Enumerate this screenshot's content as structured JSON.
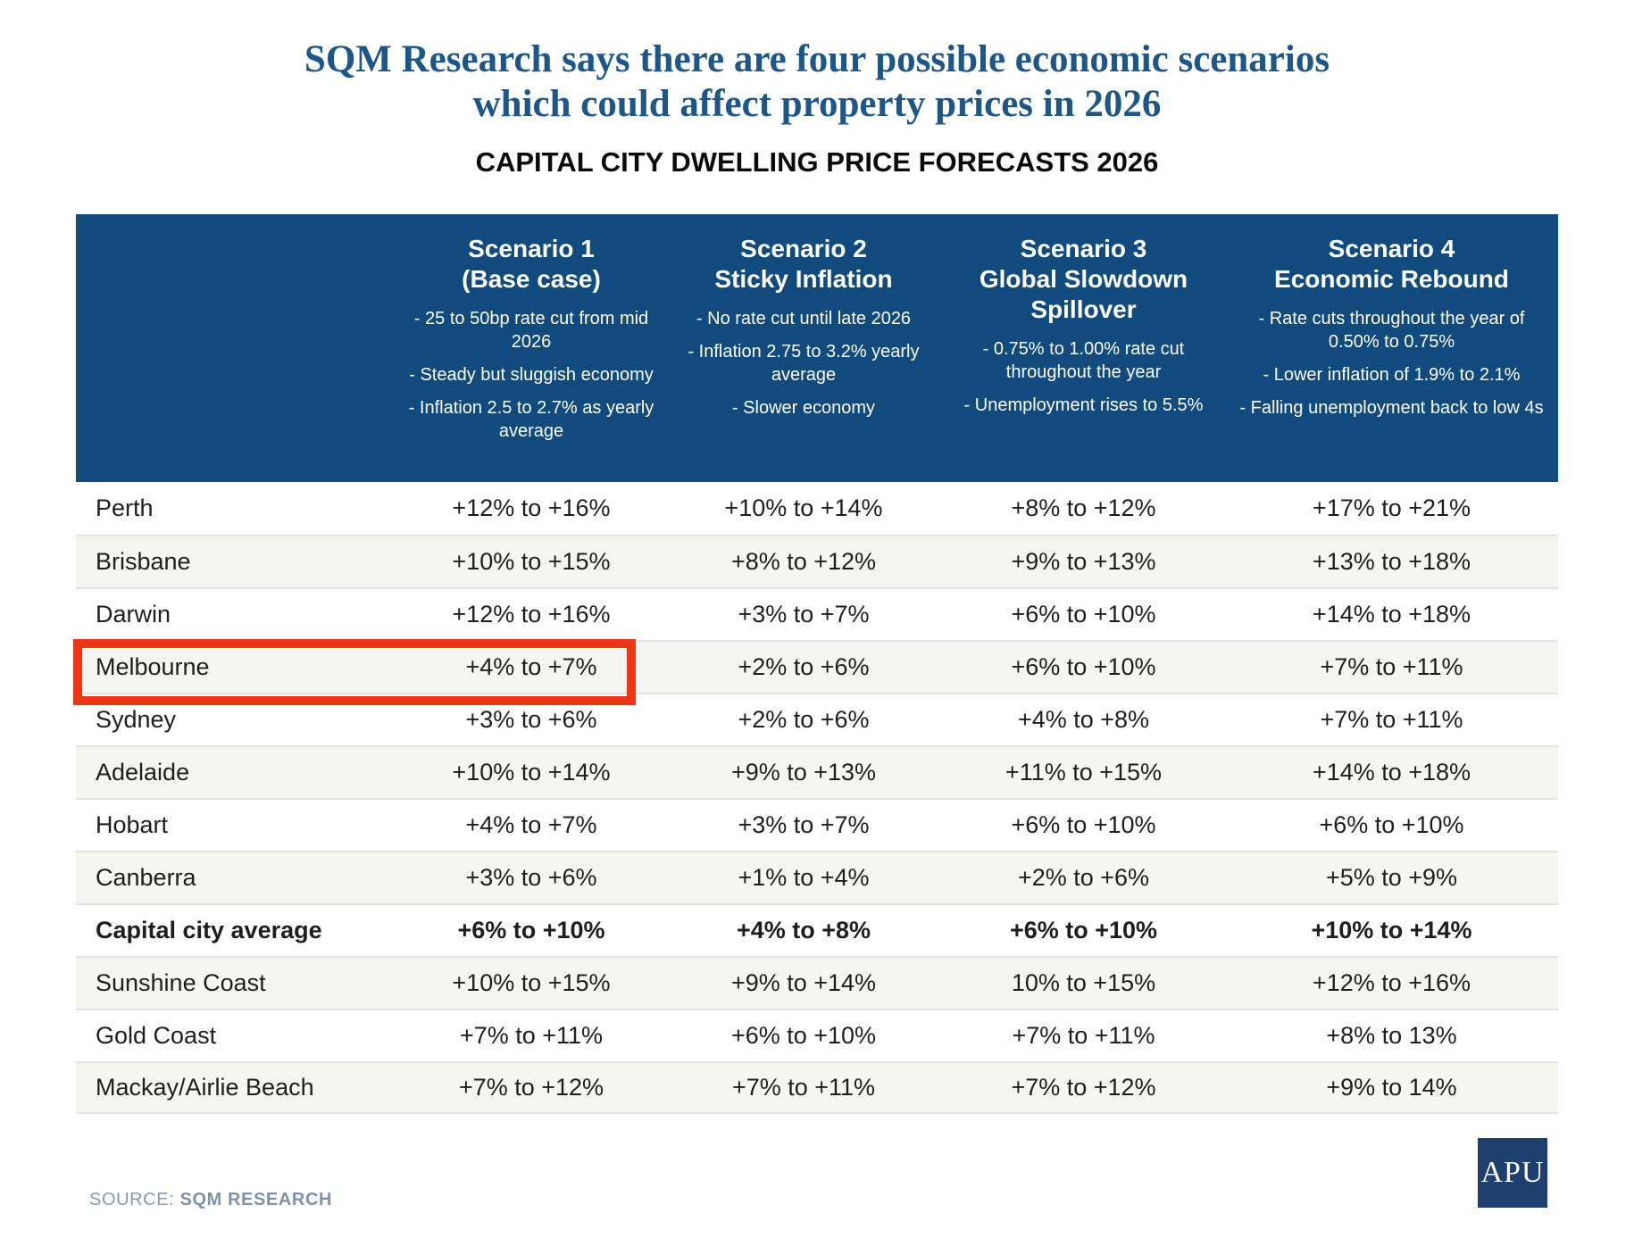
{
  "page_title": {
    "line1": "SQM Research says there are four possible economic scenarios",
    "line2": "which could affect property prices in 2026"
  },
  "source": {
    "prefix": "SOURCE:",
    "name": "SQM RESEARCH"
  },
  "logo_text": "APU",
  "colors": {
    "header_blue": "#114b7e",
    "title_blue": "#1d5689",
    "highlight_red": "#ee3617",
    "alt_row_gray": "#f5f5f2",
    "source_gray_blue": "#8a9aad",
    "logo_navy": "#1e4070"
  },
  "highlight": {
    "row": "Melbourne",
    "columns_covered": [
      "city",
      "Scenario 1 (Base case)"
    ]
  },
  "chart_data": {
    "type": "table",
    "title": "CAPITAL CITY DWELLING PRICE FORECASTS 2026",
    "columns": [
      {
        "title": "Scenario 1",
        "subtitle": "(Base case)",
        "bullets": [
          "- 25 to 50bp rate cut from mid 2026",
          "- Steady but sluggish economy",
          "- Inflation 2.5 to 2.7% as yearly average"
        ]
      },
      {
        "title": "Scenario 2",
        "subtitle": "Sticky Inflation",
        "bullets": [
          "- No rate cut until late 2026",
          "- Inflation 2.75 to 3.2% yearly average",
          "- Slower economy"
        ]
      },
      {
        "title": "Scenario 3",
        "subtitle": "Global Slowdown Spillover",
        "bullets": [
          "- 0.75% to 1.00% rate cut throughout the year",
          "- Unemployment rises to 5.5%"
        ]
      },
      {
        "title": "Scenario 4",
        "subtitle": "Economic Rebound",
        "bullets": [
          "- Rate cuts throughout the year of 0.50% to 0.75%",
          "- Lower inflation of 1.9% to 2.1%",
          "- Falling unemployment back to low 4s"
        ]
      }
    ],
    "rows": [
      {
        "city": "Perth",
        "values": [
          "+12% to +16%",
          "+10% to +14%",
          "+8% to +12%",
          "+17% to +21%"
        ]
      },
      {
        "city": "Brisbane",
        "values": [
          "+10% to +15%",
          "+8% to +12%",
          "+9% to +13%",
          "+13% to +18%"
        ]
      },
      {
        "city": "Darwin",
        "values": [
          "+12% to +16%",
          "+3% to +7%",
          "+6% to +10%",
          "+14% to +18%"
        ]
      },
      {
        "city": "Melbourne",
        "values": [
          "+4% to +7%",
          "+2% to +6%",
          "+6% to +10%",
          "+7% to +11%"
        ]
      },
      {
        "city": "Sydney",
        "values": [
          "+3% to +6%",
          "+2% to +6%",
          "+4% to +8%",
          "+7% to +11%"
        ]
      },
      {
        "city": "Adelaide",
        "values": [
          "+10% to +14%",
          "+9% to +13%",
          "+11% to +15%",
          "+14% to +18%"
        ]
      },
      {
        "city": "Hobart",
        "values": [
          "+4% to +7%",
          "+3% to +7%",
          "+6% to +10%",
          "+6% to +10%"
        ]
      },
      {
        "city": "Canberra",
        "values": [
          "+3% to +6%",
          "+1% to +4%",
          "+2% to +6%",
          "+5% to +9%"
        ]
      },
      {
        "city": "Capital city average",
        "values": [
          "+6% to +10%",
          "+4% to +8%",
          "+6% to +10%",
          "+10% to +14%"
        ]
      },
      {
        "city": "Sunshine Coast",
        "values": [
          "+10% to +15%",
          "+9% to +14%",
          "10% to +15%",
          "+12% to +16%"
        ]
      },
      {
        "city": "Gold Coast",
        "values": [
          "+7% to +11%",
          "+6% to +10%",
          "+7% to +11%",
          "+8% to 13%"
        ]
      },
      {
        "city": "Mackay/Airlie Beach",
        "values": [
          "+7% to +12%",
          "+7% to +11%",
          "+7% to +12%",
          "+9% to 14%"
        ]
      }
    ]
  }
}
